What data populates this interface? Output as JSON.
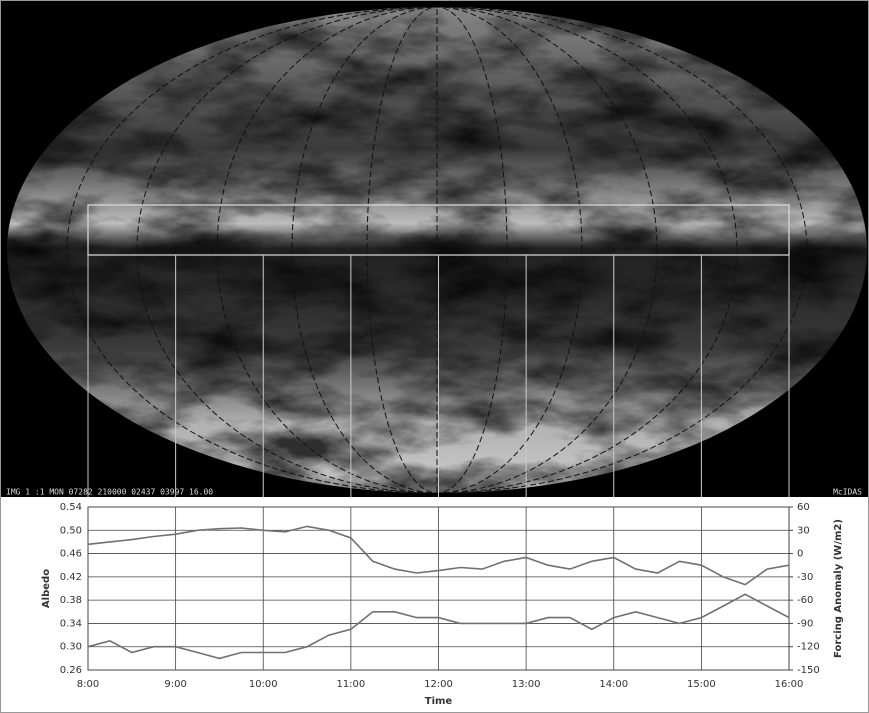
{
  "image": {
    "caption": "IMG   1 :1 MON 07282 210000 02437 03997 16.00",
    "source": "McIDAS"
  },
  "chart_data": {
    "type": "line",
    "x_label": "Time",
    "y_label": "Albedo",
    "y2_label": "Forcing Anomaly (W/m2)",
    "x": [
      8,
      8.25,
      8.5,
      8.75,
      9,
      9.25,
      9.5,
      9.75,
      10,
      10.25,
      10.5,
      10.75,
      11,
      11.25,
      11.5,
      11.75,
      12,
      12.25,
      12.5,
      12.75,
      13,
      13.25,
      13.5,
      13.75,
      14,
      14.25,
      14.5,
      14.75,
      15,
      15.25,
      15.5,
      15.75,
      16
    ],
    "series": [
      {
        "name": "Albedo",
        "color": "#707070",
        "values": [
          0.3,
          0.31,
          0.29,
          0.3,
          0.3,
          0.29,
          0.28,
          0.29,
          0.29,
          0.29,
          0.3,
          0.32,
          0.33,
          0.36,
          0.36,
          0.35,
          0.35,
          0.34,
          0.34,
          0.34,
          0.34,
          0.35,
          0.35,
          0.33,
          0.35,
          0.36,
          0.35,
          0.34,
          0.35,
          0.37,
          0.39,
          0.37,
          0.35
        ]
      },
      {
        "name": "Forcing Anomaly",
        "color": "#707070",
        "axis": "y2",
        "values": [
          12,
          15,
          18,
          22,
          25,
          30,
          32,
          33,
          30,
          28,
          35,
          30,
          20,
          -10,
          -20,
          -25,
          -22,
          -18,
          -20,
          -10,
          -5,
          -15,
          -20,
          -10,
          -5,
          -20,
          -25,
          -10,
          -15,
          -30,
          -40,
          -20,
          -15
        ]
      }
    ],
    "xlim": [
      8,
      16
    ],
    "xticks": [
      {
        "value": 8,
        "label": "8:00"
      },
      {
        "value": 9,
        "label": "9:00"
      },
      {
        "value": 10,
        "label": "10:00"
      },
      {
        "value": 11,
        "label": "11:00"
      },
      {
        "value": 12,
        "label": "12:00"
      },
      {
        "value": 13,
        "label": "13:00"
      },
      {
        "value": 14,
        "label": "14:00"
      },
      {
        "value": 15,
        "label": "15:00"
      },
      {
        "value": 16,
        "label": "16:00"
      }
    ],
    "ylim": [
      0.26,
      0.54
    ],
    "yticks": [
      {
        "value": 0.26,
        "label": "0.26"
      },
      {
        "value": 0.3,
        "label": "0.30"
      },
      0.34,
      0.38,
      0.42,
      0.46,
      {
        "value": 0.5,
        "label": "0.50"
      },
      0.54
    ],
    "y2lim": [
      -150,
      60
    ],
    "y2ticks": [
      -150,
      -120,
      -90,
      -60,
      -30,
      0,
      30,
      60
    ],
    "grid": true
  }
}
